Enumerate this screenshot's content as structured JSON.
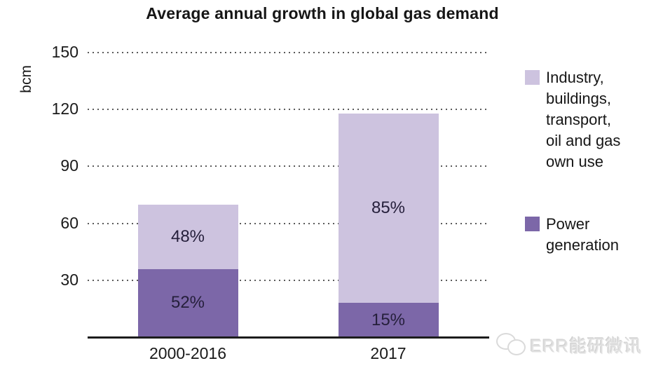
{
  "title": "Average annual growth in global gas demand",
  "watermark": {
    "text": "ERR能研微讯"
  },
  "colors": {
    "light_purple": "#cdc3df",
    "dark_purple": "#7c67a8",
    "grid": "#5a5a5a",
    "axis": "#1c1c1c",
    "watermark_gray": "#dedede"
  },
  "chart_data": {
    "type": "bar",
    "stacked": true,
    "title": "Average annual growth in global gas demand",
    "ylabel": "bcm",
    "xlabel": "",
    "categories": [
      "2000-2016",
      "2017"
    ],
    "series": [
      {
        "name": "Power generation",
        "color": "#7c67a8",
        "values": [
          36,
          18
        ],
        "labels": [
          "52%",
          "15%"
        ]
      },
      {
        "name": "Industry, buildings, transport, oil and gas own use",
        "color": "#cdc3df",
        "values": [
          34,
          100
        ],
        "labels": [
          "48%",
          "85%"
        ]
      }
    ],
    "totals": [
      70,
      118
    ],
    "ylim": [
      0,
      150
    ],
    "yticks": [
      30,
      60,
      90,
      120,
      150
    ],
    "grid": "horizontal-dotted",
    "legend_position": "right",
    "legend": [
      {
        "label": "Industry, buildings, transport, oil and gas own use",
        "color": "#cdc3df"
      },
      {
        "label": "Power generation",
        "color": "#7c67a8"
      }
    ]
  }
}
